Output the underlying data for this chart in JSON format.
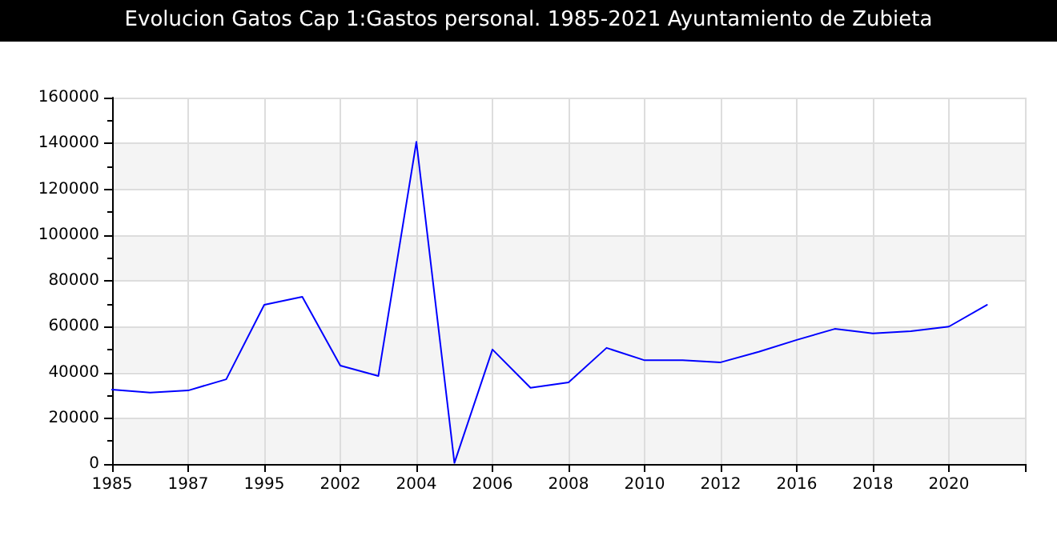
{
  "chart_data": {
    "type": "line",
    "title": "Evolucion Gatos Cap 1:Gastos personal. 1985-2021 Ayuntamiento de Zubieta",
    "categories": [
      "1985",
      null,
      "1987",
      null,
      "1995",
      null,
      "2002",
      null,
      "2004",
      null,
      "2006",
      null,
      "2008",
      null,
      "2010",
      null,
      "2012",
      null,
      "2016",
      null,
      "2018",
      null,
      "2020",
      null,
      null
    ],
    "series": [
      {
        "color": "#0000ff",
        "values": [
          32500,
          31200,
          32100,
          37000,
          69500,
          73000,
          43000,
          38400,
          140700,
          500,
          50000,
          33300,
          35600,
          50700,
          45300,
          45300,
          44400,
          49000,
          54200,
          59000,
          57000,
          58000,
          60000,
          69500,
          null
        ]
      }
    ],
    "ylim": [
      0,
      160000
    ],
    "yticks": [
      0,
      20000,
      40000,
      60000,
      80000,
      100000,
      120000,
      140000,
      160000
    ],
    "grid": true,
    "marker": "none",
    "line_style": "solid"
  }
}
